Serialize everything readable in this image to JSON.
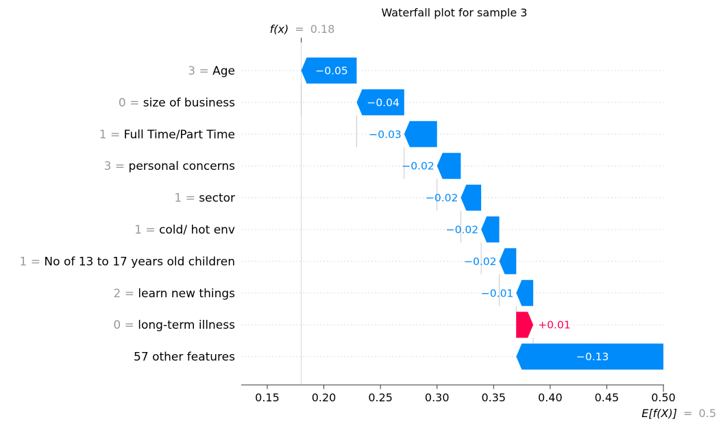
{
  "chart_data": {
    "type": "waterfall",
    "title": "Waterfall plot for sample 3",
    "fx": {
      "label": "f(x)",
      "equals": "=",
      "value": 0.18,
      "value_text": "0.18"
    },
    "efx": {
      "label": "E[f(X)]",
      "equals": "=",
      "value": 0.5,
      "value_text": "0.5"
    },
    "xlim": [
      0.127,
      0.5
    ],
    "ticks": [
      0.15,
      0.2,
      0.25,
      0.3,
      0.35,
      0.4,
      0.45,
      0.5
    ],
    "tick_labels": [
      "0.15",
      "0.20",
      "0.25",
      "0.30",
      "0.35",
      "0.40",
      "0.45",
      "0.50"
    ],
    "colors": {
      "negative": "#008bfb",
      "positive": "#ff0051"
    },
    "features": [
      {
        "value": "3",
        "name": "Age",
        "shap": -0.05,
        "label": "−0.05",
        "start": 0.229,
        "end": 0.18
      },
      {
        "value": "0",
        "name": "size of business",
        "shap": -0.04,
        "label": "−0.04",
        "start": 0.271,
        "end": 0.229
      },
      {
        "value": "1",
        "name": "Full Time/Part Time",
        "shap": -0.03,
        "label": "−0.03",
        "start": 0.3,
        "end": 0.271
      },
      {
        "value": "3",
        "name": "personal concerns",
        "shap": -0.02,
        "label": "−0.02",
        "start": 0.321,
        "end": 0.3
      },
      {
        "value": "1",
        "name": "sector",
        "shap": -0.02,
        "label": "−0.02",
        "start": 0.339,
        "end": 0.321
      },
      {
        "value": "1",
        "name": "cold/ hot env",
        "shap": -0.02,
        "label": "−0.02",
        "start": 0.355,
        "end": 0.339
      },
      {
        "value": "1",
        "name": "No of 13 to 17 years old children",
        "shap": -0.02,
        "label": "−0.02",
        "start": 0.37,
        "end": 0.355
      },
      {
        "value": "2",
        "name": "learn new things",
        "shap": -0.01,
        "label": "−0.01",
        "start": 0.385,
        "end": 0.37
      },
      {
        "value": "0",
        "name": "long-term illness",
        "shap": 0.01,
        "label": "+0.01",
        "start": 0.37,
        "end": 0.385
      },
      {
        "value": "",
        "name": "57 other features",
        "shap": -0.13,
        "label": "−0.13",
        "start": 0.5,
        "end": 0.37
      }
    ]
  }
}
